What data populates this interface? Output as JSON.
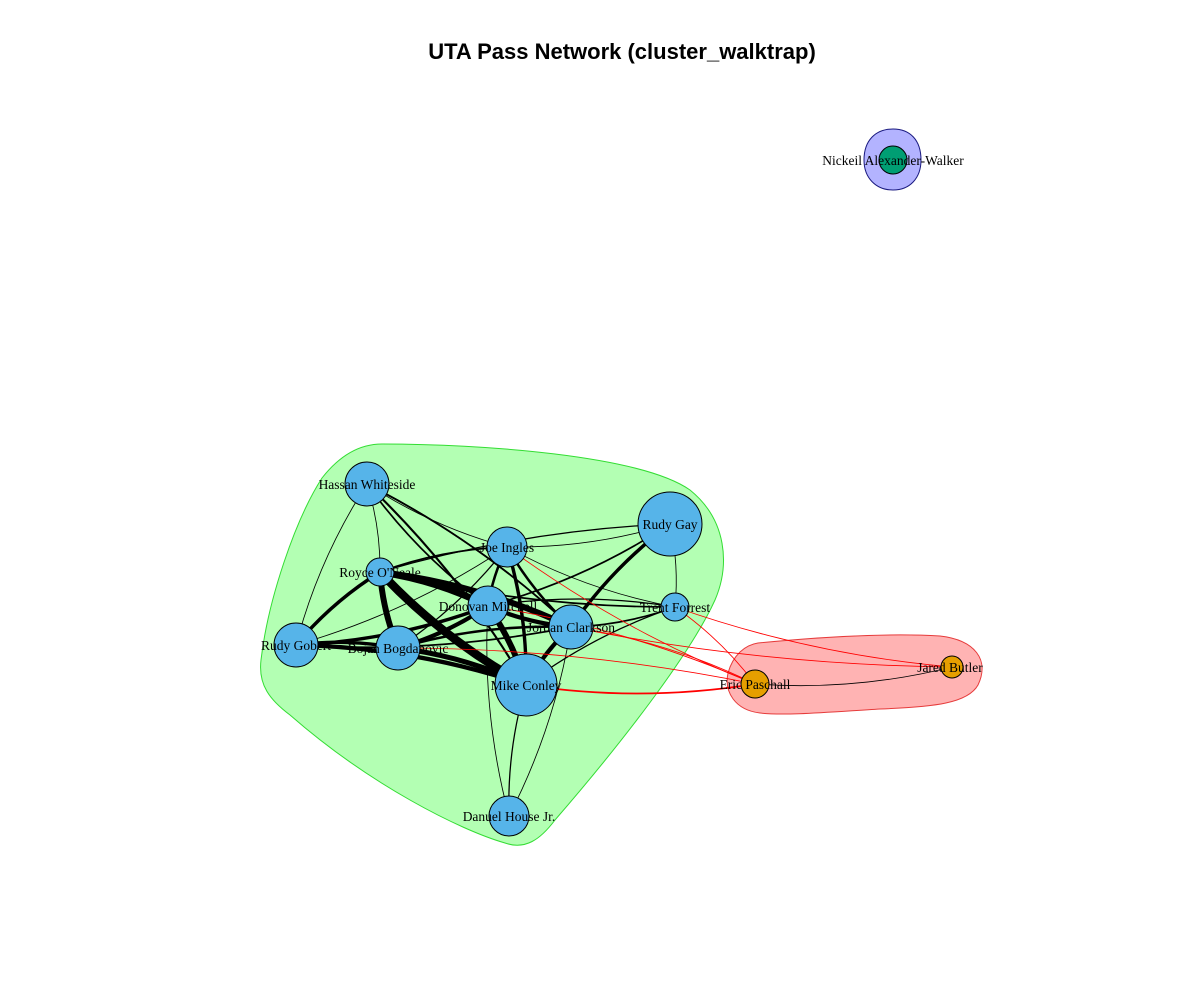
{
  "title": "UTA Pass Network (cluster_walktrap)",
  "colors": {
    "background": "#ffffff",
    "title": "#000000",
    "edge_within": "#000000",
    "edge_between": "#ff0000",
    "node_stroke": "#000000",
    "label": "#000000"
  },
  "clusters": [
    {
      "id": "c1",
      "fill": "#b3ffb3",
      "stroke": "#33dd33"
    },
    {
      "id": "c2",
      "fill": "#ffb3b3",
      "stroke": "#e63b3b"
    },
    {
      "id": "c3",
      "fill": "#b3b3ff",
      "stroke": "#1a1a80"
    }
  ],
  "nodes": [
    {
      "id": "hassan",
      "label": "Hassan Whiteside",
      "cluster": "c1",
      "color": "#56b4e9",
      "size": "medium"
    },
    {
      "id": "ingles",
      "label": "Joe Ingles",
      "cluster": "c1",
      "color": "#56b4e9",
      "size": "small"
    },
    {
      "id": "gay",
      "label": "Rudy Gay",
      "cluster": "c1",
      "color": "#56b4e9",
      "size": "large"
    },
    {
      "id": "oneale",
      "label": "Royce O'Neale",
      "cluster": "c1",
      "color": "#56b4e9",
      "size": "xsmall"
    },
    {
      "id": "mitchell",
      "label": "Donovan Mitchell",
      "cluster": "c1",
      "color": "#56b4e9",
      "size": "small"
    },
    {
      "id": "forrest",
      "label": "Trent Forrest",
      "cluster": "c1",
      "color": "#56b4e9",
      "size": "xsmall"
    },
    {
      "id": "clarkson",
      "label": "Jordan Clarkson",
      "cluster": "c1",
      "color": "#56b4e9",
      "size": "medium"
    },
    {
      "id": "gobert",
      "label": "Rudy Gobert",
      "cluster": "c1",
      "color": "#56b4e9",
      "size": "medium"
    },
    {
      "id": "bogdanovic",
      "label": "Bojan Bogdanovic",
      "cluster": "c1",
      "color": "#56b4e9",
      "size": "medium"
    },
    {
      "id": "conley",
      "label": "Mike Conley",
      "cluster": "c1",
      "color": "#56b4e9",
      "size": "xlarge"
    },
    {
      "id": "house",
      "label": "Danuel House Jr.",
      "cluster": "c1",
      "color": "#56b4e9",
      "size": "small"
    },
    {
      "id": "paschall",
      "label": "Eric Paschall",
      "cluster": "c2",
      "color": "#e69f00",
      "size": "xsmall"
    },
    {
      "id": "butler",
      "label": "Jared Butler",
      "cluster": "c2",
      "color": "#e69f00",
      "size": "xxsmall"
    },
    {
      "id": "naw",
      "label": "Nickeil Alexander-Walker",
      "cluster": "c3",
      "color": "#009e73",
      "size": "xsmall"
    }
  ],
  "edges": [
    {
      "source": "oneale",
      "target": "conley",
      "weight": 10
    },
    {
      "source": "oneale",
      "target": "mitchell",
      "weight": 8
    },
    {
      "source": "oneale",
      "target": "bogdanovic",
      "weight": 7
    },
    {
      "source": "oneale",
      "target": "clarkson",
      "weight": 7
    },
    {
      "source": "oneale",
      "target": "gobert",
      "weight": 4
    },
    {
      "source": "oneale",
      "target": "ingles",
      "weight": 2
    },
    {
      "source": "oneale",
      "target": "hassan",
      "weight": 1
    },
    {
      "source": "oneale",
      "target": "gay",
      "weight": 1.5
    },
    {
      "source": "oneale",
      "target": "forrest",
      "weight": 2
    },
    {
      "source": "gobert",
      "target": "conley",
      "weight": 5
    },
    {
      "source": "gobert",
      "target": "mitchell",
      "weight": 4
    },
    {
      "source": "gobert",
      "target": "bogdanovic",
      "weight": 4
    },
    {
      "source": "gobert",
      "target": "clarkson",
      "weight": 2
    },
    {
      "source": "gobert",
      "target": "hassan",
      "weight": 1
    },
    {
      "source": "gobert",
      "target": "ingles",
      "weight": 1
    },
    {
      "source": "bogdanovic",
      "target": "conley",
      "weight": 6
    },
    {
      "source": "bogdanovic",
      "target": "mitchell",
      "weight": 5
    },
    {
      "source": "bogdanovic",
      "target": "clarkson",
      "weight": 3
    },
    {
      "source": "bogdanovic",
      "target": "ingles",
      "weight": 1.5
    },
    {
      "source": "mitchell",
      "target": "conley",
      "weight": 7
    },
    {
      "source": "mitchell",
      "target": "clarkson",
      "weight": 5
    },
    {
      "source": "mitchell",
      "target": "ingles",
      "weight": 3
    },
    {
      "source": "mitchell",
      "target": "gay",
      "weight": 2
    },
    {
      "source": "mitchell",
      "target": "forrest",
      "weight": 1.5
    },
    {
      "source": "clarkson",
      "target": "conley",
      "weight": 5
    },
    {
      "source": "clarkson",
      "target": "gay",
      "weight": 4
    },
    {
      "source": "clarkson",
      "target": "forrest",
      "weight": 2
    },
    {
      "source": "clarkson",
      "target": "ingles",
      "weight": 3
    },
    {
      "source": "clarkson",
      "target": "hassan",
      "weight": 2
    },
    {
      "source": "ingles",
      "target": "conley",
      "weight": 4
    },
    {
      "source": "ingles",
      "target": "gay",
      "weight": 1
    },
    {
      "source": "ingles",
      "target": "hassan",
      "weight": 1
    },
    {
      "source": "ingles",
      "target": "forrest",
      "weight": 1
    },
    {
      "source": "hassan",
      "target": "conley",
      "weight": 2.5
    },
    {
      "source": "hassan",
      "target": "mitchell",
      "weight": 2
    },
    {
      "source": "hassan",
      "target": "clarkson",
      "weight": 2
    },
    {
      "source": "gay",
      "target": "conley",
      "weight": 2
    },
    {
      "source": "gay",
      "target": "forrest",
      "weight": 1
    },
    {
      "source": "forrest",
      "target": "conley",
      "weight": 1.5
    },
    {
      "source": "house",
      "target": "conley",
      "weight": 1.5
    },
    {
      "source": "house",
      "target": "clarkson",
      "weight": 1
    },
    {
      "source": "house",
      "target": "mitchell",
      "weight": 1
    },
    {
      "source": "conley",
      "target": "paschall",
      "weight": 2
    },
    {
      "source": "clarkson",
      "target": "paschall",
      "weight": 1
    },
    {
      "source": "clarkson",
      "target": "butler",
      "weight": 1
    },
    {
      "source": "mitchell",
      "target": "paschall",
      "weight": 1
    },
    {
      "source": "ingles",
      "target": "paschall",
      "weight": 1
    },
    {
      "source": "forrest",
      "target": "paschall",
      "weight": 1
    },
    {
      "source": "forrest",
      "target": "butler",
      "weight": 1
    },
    {
      "source": "bogdanovic",
      "target": "paschall",
      "weight": 1
    },
    {
      "source": "paschall",
      "target": "butler",
      "weight": 1
    }
  ]
}
